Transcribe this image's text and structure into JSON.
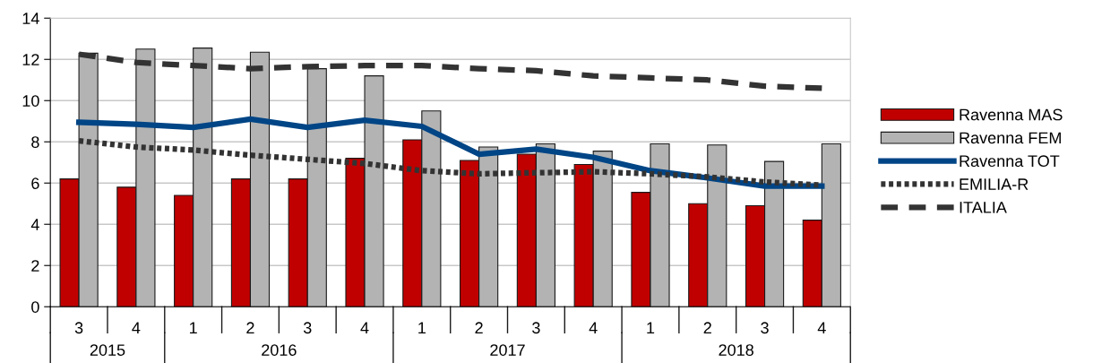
{
  "chart_data": {
    "type": "bar",
    "categories": [
      "3",
      "4",
      "1",
      "2",
      "3",
      "4",
      "1",
      "2",
      "3",
      "4",
      "1",
      "2",
      "3",
      "4"
    ],
    "annotations": [
      "2015",
      "2016",
      "2017",
      "2018"
    ],
    "ylim": [
      0,
      14
    ],
    "yticks": [
      0,
      2,
      4,
      6,
      8,
      10,
      12,
      14
    ],
    "grid": "y",
    "legend": "right",
    "series": [
      {
        "name": "Ravenna MAS",
        "color": "#c00000",
        "values": [
          6.2,
          5.8,
          5.4,
          6.2,
          6.2,
          7.2,
          8.1,
          7.1,
          7.4,
          6.9,
          5.55,
          5.0,
          4.9,
          4.2
        ]
      },
      {
        "name": "Ravenna FEM",
        "color": "#b3b3b3",
        "values": [
          12.3,
          12.5,
          12.55,
          12.35,
          11.55,
          11.2,
          9.5,
          7.75,
          7.9,
          7.55,
          7.9,
          7.85,
          7.05,
          7.9
        ]
      },
      {
        "name": "Ravenna TOT",
        "type": "line",
        "line_style": "solid",
        "color": "#004586",
        "values": [
          8.95,
          8.85,
          8.7,
          9.1,
          8.7,
          9.05,
          8.75,
          7.4,
          7.65,
          7.25,
          6.6,
          6.25,
          5.85,
          5.85
        ]
      },
      {
        "name": "EMILIA-R",
        "type": "line",
        "line_style": "dotted",
        "color": "#333333",
        "values": [
          8.05,
          7.75,
          7.6,
          7.35,
          7.15,
          6.95,
          6.6,
          6.45,
          6.5,
          6.55,
          6.45,
          6.3,
          6.05,
          5.9
        ]
      },
      {
        "name": "ITALIA",
        "type": "line",
        "line_style": "dashed",
        "color": "#333333",
        "values": [
          12.25,
          11.85,
          11.7,
          11.55,
          11.65,
          11.7,
          11.7,
          11.55,
          11.45,
          11.2,
          11.1,
          11.0,
          10.7,
          10.6
        ]
      }
    ]
  }
}
